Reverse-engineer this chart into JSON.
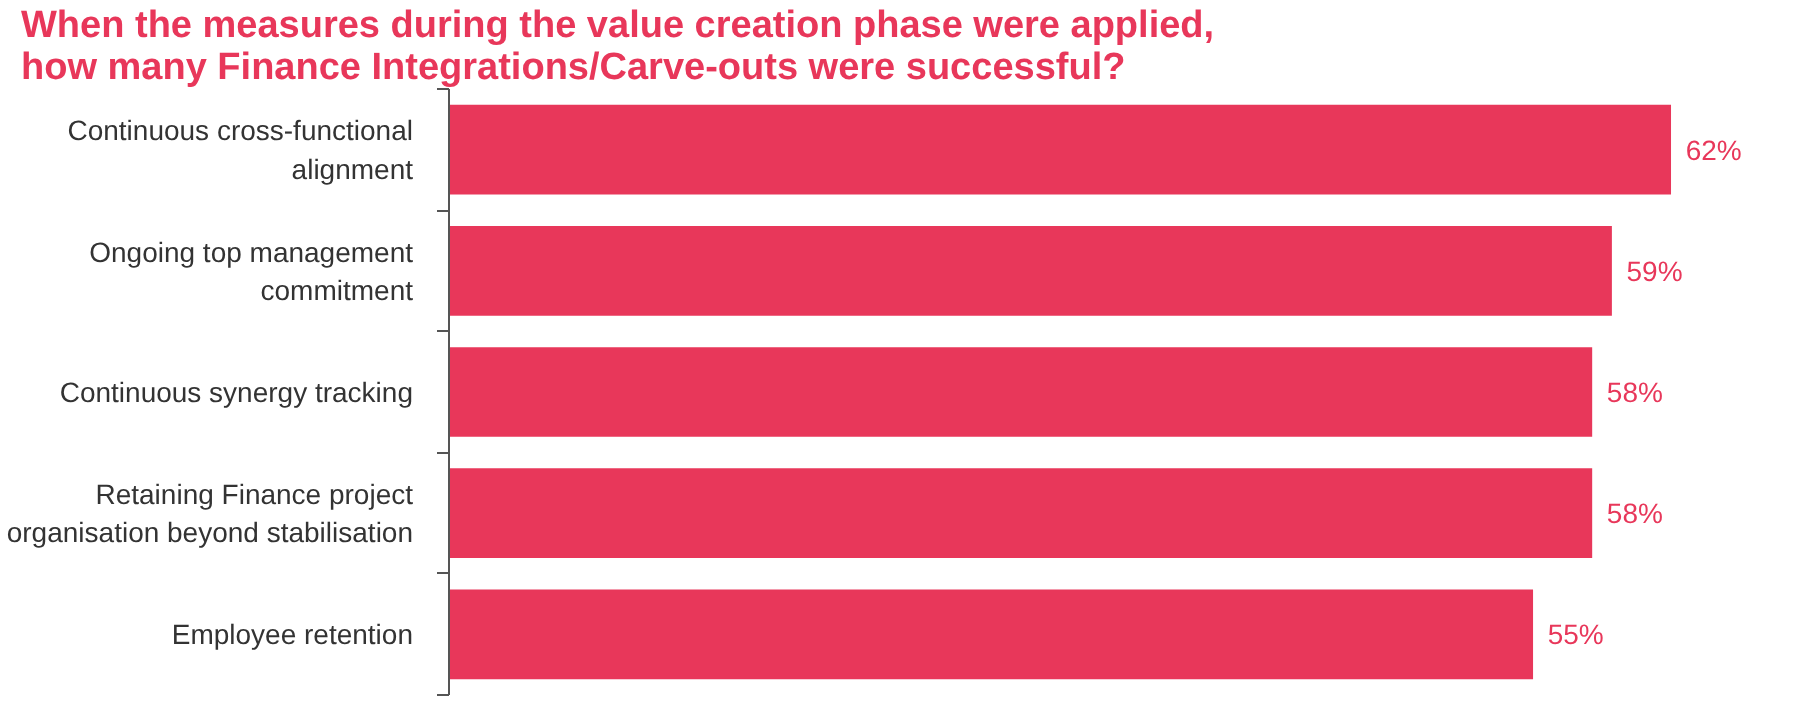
{
  "chart_data": {
    "type": "bar",
    "orientation": "horizontal",
    "title": "When the measures during the value creation phase were applied, how many Finance Integrations/Carve-outs were successful?",
    "categories": [
      "Continuous cross-functional alignment",
      "Ongoing top management commitment",
      "Continuous synergy tracking",
      "Retaining Finance project organisation beyond stabilisation",
      "Employee retention"
    ],
    "values": [
      62,
      59,
      58,
      58,
      55
    ],
    "value_labels": [
      "62%",
      "59%",
      "58%",
      "58%",
      "55%"
    ],
    "color": "#e8375a"
  }
}
